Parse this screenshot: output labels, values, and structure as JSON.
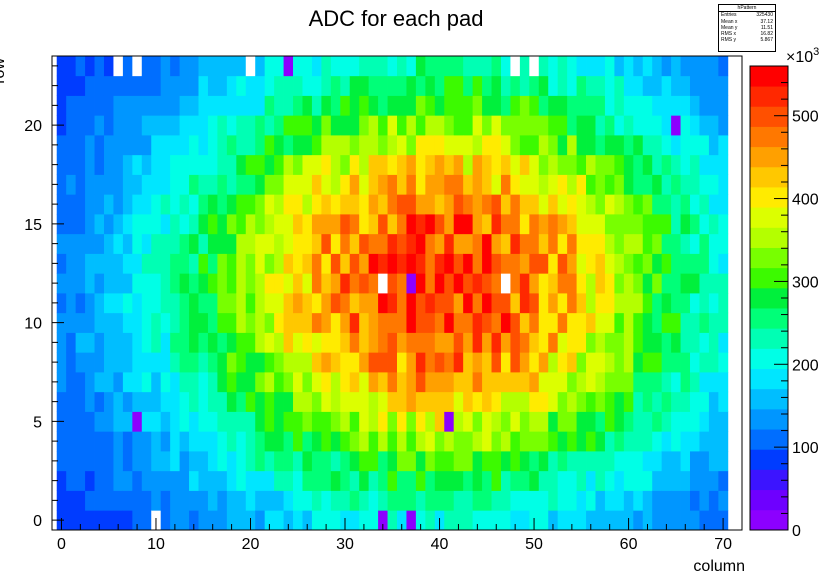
{
  "chart_data": {
    "type": "heatmap",
    "title": "ADC for each pad",
    "xlabel": "column",
    "ylabel": "row",
    "xlim": [
      -1,
      72
    ],
    "ylim": [
      -0.5,
      23.5
    ],
    "x_ticks": [
      0,
      10,
      20,
      30,
      40,
      50,
      60,
      70
    ],
    "y_ticks": [
      0,
      5,
      10,
      15,
      20
    ],
    "colorbar": {
      "label_multiplier": "×10",
      "label_exponent": "3",
      "range": [
        0,
        560
      ],
      "ticks": [
        0,
        100,
        200,
        300,
        400,
        500
      ],
      "palette": "rainbow (violet-blue-cyan-green-yellow-orange-red)"
    },
    "distribution": {
      "description_free": true,
      "peak_center": {
        "column": 40,
        "row": 12
      },
      "peak_value": 530,
      "edge_value": 60,
      "sigma_column": 20,
      "sigma_row": 8
    },
    "empty_cells": [
      {
        "column": 6,
        "row": 23
      },
      {
        "column": 8,
        "row": 23
      },
      {
        "column": 20,
        "row": 23
      },
      {
        "column": 48,
        "row": 23
      },
      {
        "column": 50,
        "row": 23
      },
      {
        "column": 10,
        "row": 0
      },
      {
        "column": 34,
        "row": 12
      },
      {
        "column": 47,
        "row": 12
      }
    ],
    "low_cells": [
      {
        "column": 37,
        "row": 12
      },
      {
        "column": 41,
        "row": 5
      },
      {
        "column": 8,
        "row": 5
      },
      {
        "column": 34,
        "row": 0
      },
      {
        "column": 37,
        "row": 0
      },
      {
        "column": 24,
        "row": 23
      },
      {
        "column": 65,
        "row": 20
      }
    ],
    "stats_box": {
      "title": "hPattern",
      "rows": [
        {
          "label": "Entries",
          "value": "325430"
        },
        {
          "label": "Mean x",
          "value": "37.12"
        },
        {
          "label": "Mean y",
          "value": "11.51"
        },
        {
          "label": "RMS x",
          "value": "16.82"
        },
        {
          "label": "RMS y",
          "value": "5.867"
        }
      ]
    }
  }
}
